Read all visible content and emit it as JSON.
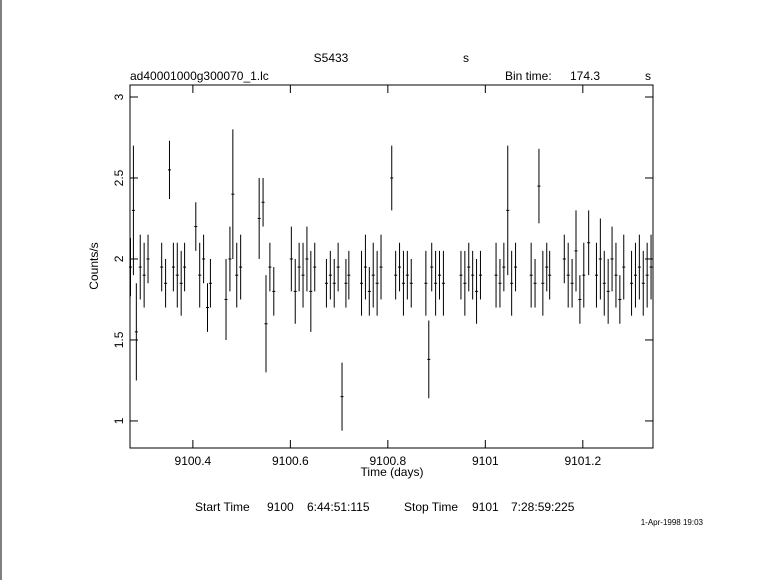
{
  "chart_data": {
    "type": "errorbar",
    "title": "S5433",
    "title_unit": "s",
    "subtitle": "ad40001000g300070_1.lc",
    "bin_label": "Bin time:",
    "bin_value": "174.3",
    "bin_unit": "s",
    "ylabel": "Counts/s",
    "xlabel": "Time (days)",
    "start_label": "Start Time",
    "start_day": "9100",
    "start_clock": "6:44:51:115",
    "stop_label": "Stop Time",
    "stop_day": "9101",
    "stop_clock": "7:28:59:225",
    "date": "1-Apr-1998 19:03",
    "color": "#000000",
    "xlim": [
      9100.271,
      9101.344
    ],
    "ylim": [
      0.833,
      3.074
    ],
    "xticks": [
      9100.4,
      9100.6,
      9100.8,
      9101,
      9101.2
    ],
    "yticks": [
      1,
      1.5,
      2,
      2.5,
      3
    ],
    "x": [
      9100.272,
      9100.278,
      9100.284,
      9100.292,
      9100.3,
      9100.308,
      9100.336,
      9100.344,
      9100.352,
      9100.36,
      9100.368,
      9100.376,
      9100.383,
      9100.406,
      9100.414,
      9100.422,
      9100.43,
      9100.436,
      9100.468,
      9100.476,
      9100.482,
      9100.49,
      9100.498,
      9100.536,
      9100.544,
      9100.55,
      9100.558,
      9100.566,
      9100.602,
      9100.61,
      9100.618,
      9100.626,
      9100.634,
      9100.642,
      9100.65,
      9100.674,
      9100.682,
      9100.69,
      9100.698,
      9100.706,
      9100.714,
      9100.72,
      9100.746,
      9100.754,
      9100.762,
      9100.77,
      9100.778,
      9100.786,
      9100.808,
      9100.816,
      9100.824,
      9100.832,
      9100.84,
      9100.848,
      9100.878,
      9100.884,
      9100.89,
      9100.898,
      9100.906,
      9100.914,
      9100.95,
      9100.958,
      9100.966,
      9100.974,
      9100.982,
      9100.99,
      9101.022,
      9101.03,
      9101.038,
      9101.046,
      9101.054,
      9101.062,
      9101.094,
      9101.102,
      9101.11,
      9101.118,
      9101.126,
      9101.132,
      9101.162,
      9101.17,
      9101.178,
      9101.186,
      9101.194,
      9101.202,
      9101.212,
      9101.228,
      9101.236,
      9101.244,
      9101.252,
      9101.26,
      9101.268,
      9101.276,
      9101.284,
      9101.3,
      9101.308,
      9101.316,
      9101.324,
      9101.332,
      9101.34
    ],
    "values": [
      1.95,
      2.3,
      1.55,
      1.95,
      1.9,
      2.0,
      1.95,
      1.85,
      2.55,
      1.95,
      1.9,
      1.85,
      1.95,
      2.2,
      1.9,
      2.0,
      1.7,
      1.85,
      1.75,
      2.0,
      2.4,
      1.9,
      1.95,
      2.25,
      2.35,
      1.6,
      1.95,
      1.8,
      2.0,
      1.8,
      1.95,
      1.9,
      2.0,
      1.8,
      1.95,
      1.85,
      1.9,
      1.85,
      1.95,
      1.15,
      1.85,
      1.9,
      1.85,
      1.95,
      1.8,
      1.9,
      1.85,
      1.95,
      2.5,
      1.9,
      1.95,
      1.85,
      1.9,
      1.85,
      1.85,
      1.38,
      1.95,
      1.85,
      1.9,
      1.85,
      1.9,
      1.85,
      1.95,
      1.9,
      1.8,
      1.9,
      1.9,
      1.85,
      1.95,
      2.3,
      1.85,
      1.95,
      1.9,
      1.85,
      2.45,
      1.85,
      1.95,
      1.9,
      2.0,
      1.9,
      1.85,
      2.05,
      1.75,
      1.9,
      2.1,
      1.9,
      2.0,
      1.85,
      1.8,
      2.0,
      1.9,
      1.75,
      1.95,
      1.85,
      1.9,
      1.95,
      1.85,
      1.9,
      1.95
    ],
    "errors": [
      0.18,
      0.4,
      0.3,
      0.2,
      0.2,
      0.15,
      0.15,
      0.15,
      0.18,
      0.15,
      0.2,
      0.2,
      0.15,
      0.15,
      0.2,
      0.15,
      0.15,
      0.15,
      0.25,
      0.2,
      0.4,
      0.2,
      0.2,
      0.25,
      0.15,
      0.3,
      0.15,
      0.15,
      0.2,
      0.2,
      0.15,
      0.2,
      0.2,
      0.25,
      0.15,
      0.15,
      0.15,
      0.15,
      0.15,
      0.21,
      0.15,
      0.15,
      0.2,
      0.2,
      0.15,
      0.2,
      0.2,
      0.2,
      0.2,
      0.15,
      0.15,
      0.2,
      0.15,
      0.15,
      0.2,
      0.24,
      0.15,
      0.2,
      0.15,
      0.2,
      0.15,
      0.2,
      0.15,
      0.15,
      0.2,
      0.15,
      0.2,
      0.15,
      0.15,
      0.4,
      0.2,
      0.15,
      0.2,
      0.15,
      0.23,
      0.2,
      0.15,
      0.15,
      0.15,
      0.2,
      0.15,
      0.25,
      0.15,
      0.2,
      0.2,
      0.2,
      0.25,
      0.2,
      0.2,
      0.2,
      0.2,
      0.15,
      0.2,
      0.2,
      0.2,
      0.2,
      0.2,
      0.2,
      0.2
    ]
  }
}
